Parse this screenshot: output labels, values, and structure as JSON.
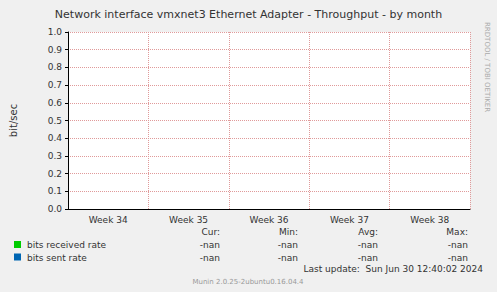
{
  "chart_data": {
    "type": "line",
    "title": "Network interface vmxnet3 Ethernet Adapter - Throughput - by month",
    "y_label": "bit/sec",
    "categories": [
      "Week 34",
      "Week 35",
      "Week 36",
      "Week 37",
      "Week 38"
    ],
    "series": [
      {
        "name": "bits received rate",
        "color": "#00cc00",
        "values": [
          null,
          null,
          null,
          null,
          null
        ],
        "stats": [
          "-nan",
          "-nan",
          "-nan",
          "-nan"
        ]
      },
      {
        "name": "bits sent rate",
        "color": "#0066b3",
        "values": [
          null,
          null,
          null,
          null,
          null
        ],
        "stats": [
          "-nan",
          "-nan",
          "-nan",
          "-nan"
        ]
      }
    ],
    "stats_headers": [
      "Cur:",
      "Min:",
      "Avg:",
      "Max:"
    ],
    "ylim": [
      0,
      1
    ],
    "yticks": [
      {
        "value": 0,
        "label": "0.0"
      },
      0.1,
      0.2,
      0.3,
      0.4,
      0.5,
      0.6,
      0.7,
      0.8,
      0.9,
      {
        "value": 1,
        "label": "1.0"
      }
    ],
    "grid": true,
    "footer": [
      "Last update:  Sun Jun 30 12:40:02 2024",
      "Munin 2.0.25-2ubuntu0.16.04.4"
    ],
    "side_label": "RRDTOOL / TOBI OETIKER"
  }
}
